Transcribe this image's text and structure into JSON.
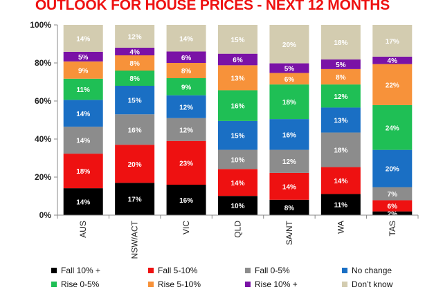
{
  "chart_data": {
    "type": "bar",
    "stacked": true,
    "title": "OUTLOOK FOR HOUSE PRICES - NEXT 12 MONTHS",
    "xlabel": "",
    "ylabel": "",
    "ylim": [
      0,
      100
    ],
    "y_ticks": [
      "0%",
      "20%",
      "40%",
      "60%",
      "80%",
      "100%"
    ],
    "grid": false,
    "legend_position": "bottom",
    "categories": [
      "AUS",
      "NSW/ACT",
      "VIC",
      "QLD",
      "SA/NT",
      "WA",
      "TAS"
    ],
    "series": [
      {
        "name": "Fall 10% +",
        "color": "#000000",
        "values": [
          14,
          17,
          16,
          10,
          8,
          11,
          2
        ]
      },
      {
        "name": "Fall 5-10%",
        "color": "#ee1111",
        "values": [
          18,
          20,
          23,
          14,
          14,
          14,
          6
        ]
      },
      {
        "name": "Fall 0-5%",
        "color": "#8c8c8c",
        "values": [
          14,
          16,
          12,
          10,
          12,
          18,
          7
        ]
      },
      {
        "name": "No change",
        "color": "#1a6fc4",
        "values": [
          14,
          15,
          12,
          15,
          16,
          13,
          20
        ]
      },
      {
        "name": "Rise 0-5%",
        "color": "#1fbf55",
        "values": [
          11,
          8,
          9,
          16,
          18,
          12,
          24
        ]
      },
      {
        "name": "Rise 5-10%",
        "color": "#f7923a",
        "values": [
          9,
          8,
          8,
          13,
          6,
          8,
          22
        ]
      },
      {
        "name": "Rise 10% +",
        "color": "#7a12a6",
        "values": [
          5,
          4,
          6,
          6,
          5,
          5,
          4
        ]
      },
      {
        "name": "Don’t know",
        "color": "#d3ccb0",
        "values": [
          14,
          12,
          14,
          15,
          20,
          18,
          17
        ]
      }
    ],
    "data_labels": [
      [
        "14%",
        "17%",
        "16%",
        "10%",
        "8%",
        "11%",
        "2%"
      ],
      [
        "18%",
        "20%",
        "23%",
        "14%",
        "14%",
        "14%",
        "6%"
      ],
      [
        "14%",
        "16%",
        "12%",
        "10%",
        "12%",
        "18%",
        "7%"
      ],
      [
        "14%",
        "15%",
        "12%",
        "15%",
        "16%",
        "13%",
        "20%"
      ],
      [
        "11%",
        "8%",
        "9%",
        "16%",
        "18%",
        "12%",
        "24%"
      ],
      [
        "9%",
        "8%",
        "8%",
        "13%",
        "6%",
        "8%",
        "22%"
      ],
      [
        "5%",
        "4%",
        "6%",
        "6%",
        "5%",
        "5%",
        "4%"
      ],
      [
        "14%",
        "12%",
        "14%",
        "15%",
        "20%",
        "18%",
        "17%"
      ]
    ]
  }
}
